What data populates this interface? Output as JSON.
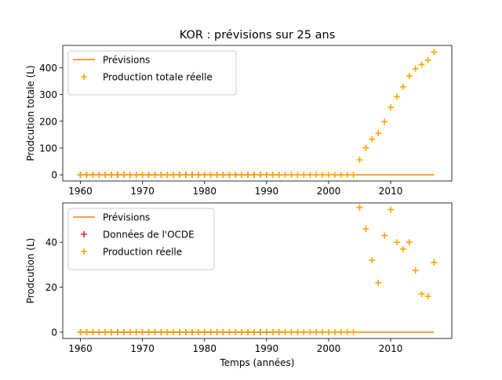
{
  "title": "KOR : prévisions sur 25 ans",
  "colors": {
    "forecast": "#ff7f0e",
    "oecd": "#d62728",
    "actual": "#ffa500",
    "axis": "#000000"
  },
  "chart_data": [
    {
      "type": "line+scatter",
      "xlabel": "",
      "ylabel": "Prodcution totale (L)",
      "xlim": [
        1957.15,
        2019.85
      ],
      "ylim": [
        -23,
        483
      ],
      "xticks": [
        1960,
        1970,
        1980,
        1990,
        2000,
        2010
      ],
      "yticks": [
        0,
        100,
        200,
        300,
        400
      ],
      "legend": {
        "position": "top-left",
        "entries": [
          "Prévisions",
          "Production totale réelle"
        ]
      },
      "forecast": {
        "name": "Prévisions",
        "x": [
          1960,
          2017
        ],
        "y": [
          0,
          0
        ]
      },
      "oecd": {
        "name": "Données de l'OCDE",
        "x": [
          1960,
          1961,
          1962,
          1963,
          1964,
          1965,
          1966,
          1967,
          1968,
          1969,
          1970,
          1971,
          1972,
          1973,
          1974,
          1975,
          1976,
          1977,
          1978,
          1979,
          1980,
          1981,
          1982,
          1983,
          1984,
          1985,
          1986,
          1987,
          1988,
          1989,
          1990,
          1991,
          1992
        ],
        "y": [
          0,
          0,
          0,
          0,
          0,
          0,
          0,
          0,
          0,
          0,
          0,
          0,
          0,
          0,
          0,
          0,
          0,
          0,
          0,
          0,
          0,
          0,
          0,
          0,
          0,
          0,
          0,
          0,
          0,
          0,
          0,
          0,
          0
        ]
      },
      "actual": {
        "name": "Production totale réelle",
        "x": [
          1960,
          1961,
          1962,
          1963,
          1964,
          1965,
          1966,
          1967,
          1968,
          1969,
          1970,
          1971,
          1972,
          1973,
          1974,
          1975,
          1976,
          1977,
          1978,
          1979,
          1980,
          1981,
          1982,
          1983,
          1984,
          1985,
          1986,
          1987,
          1988,
          1989,
          1990,
          1991,
          1992,
          1993,
          1994,
          1995,
          1996,
          1997,
          1998,
          1999,
          2000,
          2001,
          2002,
          2003,
          2004,
          2005,
          2006,
          2007,
          2008,
          2009,
          2010,
          2011,
          2012,
          2013,
          2014,
          2015,
          2016,
          2017
        ],
        "y": [
          0,
          0,
          0,
          0,
          0,
          0,
          0,
          0,
          0,
          0,
          0,
          0,
          0,
          0,
          0,
          0,
          0,
          0,
          0,
          0,
          0,
          0,
          0,
          0,
          0,
          0,
          0,
          0,
          0,
          0,
          0,
          0,
          0,
          0,
          0,
          0,
          0,
          0,
          0,
          0,
          0,
          0,
          0,
          0,
          0,
          56,
          101,
          133,
          155,
          198,
          252,
          292,
          329,
          369,
          396,
          412,
          428,
          458
        ]
      }
    },
    {
      "type": "line+scatter",
      "xlabel": "Temps (années)",
      "ylabel": "Prodcution (L)",
      "xlim": [
        1957.15,
        2019.85
      ],
      "ylim": [
        -2.8,
        57.5
      ],
      "xticks": [
        1960,
        1970,
        1980,
        1990,
        2000,
        2010
      ],
      "yticks": [
        0,
        20,
        40
      ],
      "legend": {
        "position": "top-left",
        "entries": [
          "Prévisions",
          "Données de l'OCDE",
          "Production réelle"
        ]
      },
      "forecast": {
        "name": "Prévisions",
        "x": [
          1960,
          2017
        ],
        "y": [
          0,
          0
        ]
      },
      "oecd": {
        "name": "Données de l'OCDE",
        "x": [
          1960,
          1961,
          1962,
          1963,
          1964,
          1965,
          1966,
          1967,
          1968,
          1969,
          1970,
          1971,
          1972,
          1973,
          1974,
          1975,
          1976,
          1977,
          1978,
          1979,
          1980,
          1981,
          1982,
          1983,
          1984,
          1985,
          1986,
          1987,
          1988,
          1989,
          1990,
          1991,
          1992
        ],
        "y": [
          0,
          0,
          0,
          0,
          0,
          0,
          0,
          0,
          0,
          0,
          0,
          0,
          0,
          0,
          0,
          0,
          0,
          0,
          0,
          0,
          0,
          0,
          0,
          0,
          0,
          0,
          0,
          0,
          0,
          0,
          0,
          0,
          0
        ]
      },
      "actual": {
        "name": "Production réelle",
        "x": [
          1960,
          1961,
          1962,
          1963,
          1964,
          1965,
          1966,
          1967,
          1968,
          1969,
          1970,
          1971,
          1972,
          1973,
          1974,
          1975,
          1976,
          1977,
          1978,
          1979,
          1980,
          1981,
          1982,
          1983,
          1984,
          1985,
          1986,
          1987,
          1988,
          1989,
          1990,
          1991,
          1992,
          1993,
          1994,
          1995,
          1996,
          1997,
          1998,
          1999,
          2000,
          2001,
          2002,
          2003,
          2004,
          2005,
          2006,
          2007,
          2008,
          2009,
          2010,
          2011,
          2012,
          2013,
          2014,
          2015,
          2016,
          2017
        ],
        "y": [
          0,
          0,
          0,
          0,
          0,
          0,
          0,
          0,
          0,
          0,
          0,
          0,
          0,
          0,
          0,
          0,
          0,
          0,
          0,
          0,
          0,
          0,
          0,
          0,
          0,
          0,
          0,
          0,
          0,
          0,
          0,
          0,
          0,
          0,
          0,
          0,
          0,
          0,
          0,
          0,
          0,
          0,
          0,
          0,
          0,
          55.5,
          46,
          32,
          22,
          43,
          54.5,
          40,
          37,
          40,
          27.5,
          17,
          16,
          31
        ]
      }
    }
  ]
}
